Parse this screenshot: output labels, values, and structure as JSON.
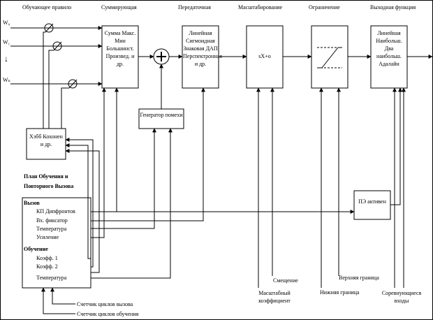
{
  "stages": {
    "learning": "Обучающее правило",
    "summation": "Суммирующая",
    "transfer": "Передаточная",
    "scaling": "Масштабирование",
    "limiting": "Ограничение",
    "output_function": "Выходная функция"
  },
  "inputs": {
    "w0": "W₀",
    "w1": "W₁",
    "arrow": "↓",
    "wn": "Wₙ"
  },
  "blocks": {
    "summation": "Сумма Макс. Мин Большинст. Произвед. и др.",
    "transfer": "Линейная Сигмоидная Знаковая ДАП Перспектронная и др.",
    "scaling": "sX+o",
    "output": "Линейная Наибольш. Два наибольш. Адалайн",
    "learning_rule": "Хэбб Кохонен и др.",
    "noise": "Генератор помехи",
    "pe_active": "ПЭ активен"
  },
  "plan": {
    "title_line1": "План Обучения и",
    "title_line2": "Повторного Вызова",
    "recall_header": "Вызов",
    "recall_items": [
      "КП Дипфронтов",
      "Вх. фиксатор",
      "Температура",
      "Усиление"
    ],
    "learning_header": "Обучение",
    "learning_items": [
      "Коэфф. 1",
      "Коэфф. 2",
      "Температура"
    ]
  },
  "bottom_labels": {
    "recall_counter": "Счетчик циклов вызова",
    "learning_counter": "Счетчик циклов обучения",
    "offset": "Смещение",
    "scale_factor": "Масштабный коэффициент",
    "lower_bound": "Нижняя граница",
    "upper_bound": "Верхняя граница",
    "competing_inputs": "Соревнующиеся входы"
  }
}
